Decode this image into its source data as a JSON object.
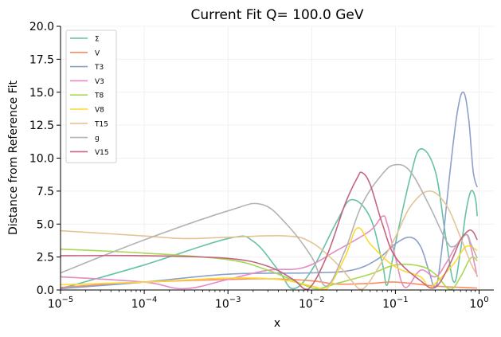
{
  "chart_data": {
    "type": "line",
    "title": "Current Fit Q= 100.0 GeV",
    "xlabel": "x",
    "ylabel": "Distance from Reference Fit",
    "xscale": "log",
    "xlim": [
      1e-05,
      1.5
    ],
    "ylim": [
      0,
      20
    ],
    "xticks": [
      1e-05,
      0.0001,
      0.001,
      0.01,
      0.1,
      1
    ],
    "xtick_labels": [
      {
        "base": "10",
        "exp": "−5"
      },
      {
        "base": "10",
        "exp": "−4"
      },
      {
        "base": "10",
        "exp": "−3"
      },
      {
        "base": "10",
        "exp": "−2"
      },
      {
        "base": "10",
        "exp": "−1"
      },
      {
        "base": "10",
        "exp": "0"
      }
    ],
    "yticks": [
      0,
      2.5,
      5,
      7.5,
      10,
      12.5,
      15,
      17.5,
      20
    ],
    "ytick_labels": [
      "0.0",
      "2.5",
      "5.0",
      "7.5",
      "10.0",
      "12.5",
      "15.0",
      "17.5",
      "20.0"
    ],
    "grid": true,
    "legend_position": "top-left",
    "series": [
      {
        "name": "Σ",
        "color": "#66c2a5",
        "points": [
          [
            1e-05,
            0.1
          ],
          [
            0.0001,
            1.9
          ],
          [
            0.001,
            3.9
          ],
          [
            0.002,
            3.7
          ],
          [
            0.004,
            1.5
          ],
          [
            0.006,
            0.1
          ],
          [
            0.01,
            1.5
          ],
          [
            0.02,
            5.2
          ],
          [
            0.03,
            6.85
          ],
          [
            0.05,
            5.5
          ],
          [
            0.07,
            2.0
          ],
          [
            0.08,
            0.4
          ],
          [
            0.1,
            3.5
          ],
          [
            0.15,
            8.5
          ],
          [
            0.2,
            10.7
          ],
          [
            0.3,
            9.0
          ],
          [
            0.4,
            4.0
          ],
          [
            0.5,
            0.6
          ],
          [
            0.6,
            3.0
          ],
          [
            0.7,
            6.0
          ],
          [
            0.8,
            7.5
          ],
          [
            0.9,
            7.0
          ],
          [
            0.95,
            5.6
          ]
        ]
      },
      {
        "name": "V",
        "color": "#fc8d62",
        "points": [
          [
            1e-05,
            0.2
          ],
          [
            0.0001,
            0.6
          ],
          [
            0.001,
            0.8
          ],
          [
            0.003,
            0.85
          ],
          [
            0.01,
            0.7
          ],
          [
            0.02,
            0.45
          ],
          [
            0.05,
            0.5
          ],
          [
            0.1,
            0.6
          ],
          [
            0.3,
            0.3
          ],
          [
            0.6,
            0.2
          ],
          [
            0.95,
            0.15
          ]
        ]
      },
      {
        "name": "T3",
        "color": "#8da0cb",
        "points": [
          [
            1e-05,
            0.1
          ],
          [
            0.0001,
            0.6
          ],
          [
            0.001,
            1.2
          ],
          [
            0.01,
            1.3
          ],
          [
            0.03,
            1.5
          ],
          [
            0.06,
            2.3
          ],
          [
            0.1,
            3.5
          ],
          [
            0.15,
            4.0
          ],
          [
            0.2,
            3.3
          ],
          [
            0.25,
            1.5
          ],
          [
            0.3,
            0.2
          ],
          [
            0.35,
            2.5
          ],
          [
            0.45,
            9.0
          ],
          [
            0.55,
            13.5
          ],
          [
            0.65,
            15.0
          ],
          [
            0.75,
            13.0
          ],
          [
            0.85,
            9.0
          ],
          [
            0.95,
            7.8
          ]
        ]
      },
      {
        "name": "V3",
        "color": "#e78ac3",
        "points": [
          [
            1e-05,
            1.0
          ],
          [
            0.0001,
            0.6
          ],
          [
            0.0003,
            0.1
          ],
          [
            0.001,
            0.8
          ],
          [
            0.003,
            1.5
          ],
          [
            0.008,
            1.7
          ],
          [
            0.02,
            3.0
          ],
          [
            0.05,
            4.5
          ],
          [
            0.07,
            5.6
          ],
          [
            0.08,
            5.0
          ],
          [
            0.1,
            2.5
          ],
          [
            0.13,
            0.2
          ],
          [
            0.2,
            1.5
          ],
          [
            0.3,
            1.0
          ],
          [
            0.4,
            2.0
          ],
          [
            0.55,
            3.5
          ],
          [
            0.7,
            4.2
          ],
          [
            0.8,
            3.2
          ],
          [
            0.95,
            1.0
          ]
        ]
      },
      {
        "name": "T8",
        "color": "#a6d854",
        "points": [
          [
            1e-05,
            3.1
          ],
          [
            0.0001,
            2.8
          ],
          [
            0.001,
            2.3
          ],
          [
            0.003,
            1.5
          ],
          [
            0.008,
            0.4
          ],
          [
            0.012,
            0.1
          ],
          [
            0.02,
            0.5
          ],
          [
            0.05,
            1.2
          ],
          [
            0.1,
            1.9
          ],
          [
            0.2,
            1.8
          ],
          [
            0.3,
            1.2
          ],
          [
            0.45,
            0.05
          ],
          [
            0.6,
            1.0
          ],
          [
            0.75,
            2.2
          ],
          [
            0.85,
            2.5
          ],
          [
            0.95,
            2.2
          ]
        ]
      },
      {
        "name": "V8",
        "color": "#ffd92f",
        "points": [
          [
            1e-05,
            0.4
          ],
          [
            0.0001,
            0.6
          ],
          [
            0.001,
            0.9
          ],
          [
            0.004,
            0.8
          ],
          [
            0.01,
            0.3
          ],
          [
            0.015,
            0.05
          ],
          [
            0.025,
            2.5
          ],
          [
            0.035,
            4.7
          ],
          [
            0.05,
            3.5
          ],
          [
            0.08,
            2.2
          ],
          [
            0.12,
            1.5
          ],
          [
            0.2,
            1.0
          ],
          [
            0.25,
            0.2
          ],
          [
            0.3,
            0.5
          ],
          [
            0.5,
            2.0
          ],
          [
            0.7,
            3.3
          ],
          [
            0.95,
            3.0
          ]
        ]
      },
      {
        "name": "T15",
        "color": "#e5c494",
        "points": [
          [
            1e-05,
            4.5
          ],
          [
            0.0001,
            4.1
          ],
          [
            0.0003,
            3.9
          ],
          [
            0.001,
            4.0
          ],
          [
            0.005,
            4.1
          ],
          [
            0.01,
            3.6
          ],
          [
            0.02,
            2.0
          ],
          [
            0.03,
            0.7
          ],
          [
            0.04,
            0.05
          ],
          [
            0.06,
            1.5
          ],
          [
            0.1,
            4.0
          ],
          [
            0.15,
            6.3
          ],
          [
            0.25,
            7.5
          ],
          [
            0.4,
            6.5
          ],
          [
            0.6,
            4.0
          ],
          [
            0.8,
            2.0
          ],
          [
            0.95,
            1.1
          ]
        ]
      },
      {
        "name": "g",
        "color": "#b3b3b3",
        "points": [
          [
            1e-05,
            1.3
          ],
          [
            0.0001,
            3.8
          ],
          [
            0.001,
            6.0
          ],
          [
            0.0025,
            6.5
          ],
          [
            0.005,
            5.0
          ],
          [
            0.01,
            2.5
          ],
          [
            0.015,
            0.3
          ],
          [
            0.025,
            3.0
          ],
          [
            0.04,
            6.5
          ],
          [
            0.07,
            8.8
          ],
          [
            0.1,
            9.5
          ],
          [
            0.15,
            9.0
          ],
          [
            0.25,
            6.5
          ],
          [
            0.4,
            3.8
          ],
          [
            0.5,
            3.3
          ],
          [
            0.7,
            4.2
          ],
          [
            0.8,
            3.5
          ],
          [
            0.95,
            2.4
          ]
        ]
      },
      {
        "name": "V15",
        "color": "#c2677f",
        "points": [
          [
            1e-05,
            2.6
          ],
          [
            0.0001,
            2.6
          ],
          [
            0.001,
            2.4
          ],
          [
            0.003,
            1.8
          ],
          [
            0.006,
            0.8
          ],
          [
            0.009,
            0.05
          ],
          [
            0.015,
            2.5
          ],
          [
            0.025,
            6.5
          ],
          [
            0.035,
            8.5
          ],
          [
            0.04,
            8.9
          ],
          [
            0.05,
            8.0
          ],
          [
            0.07,
            5.0
          ],
          [
            0.1,
            2.5
          ],
          [
            0.2,
            0.7
          ],
          [
            0.3,
            0.2
          ],
          [
            0.45,
            2.0
          ],
          [
            0.6,
            3.8
          ],
          [
            0.75,
            4.5
          ],
          [
            0.85,
            4.4
          ],
          [
            0.95,
            3.8
          ]
        ]
      }
    ]
  }
}
